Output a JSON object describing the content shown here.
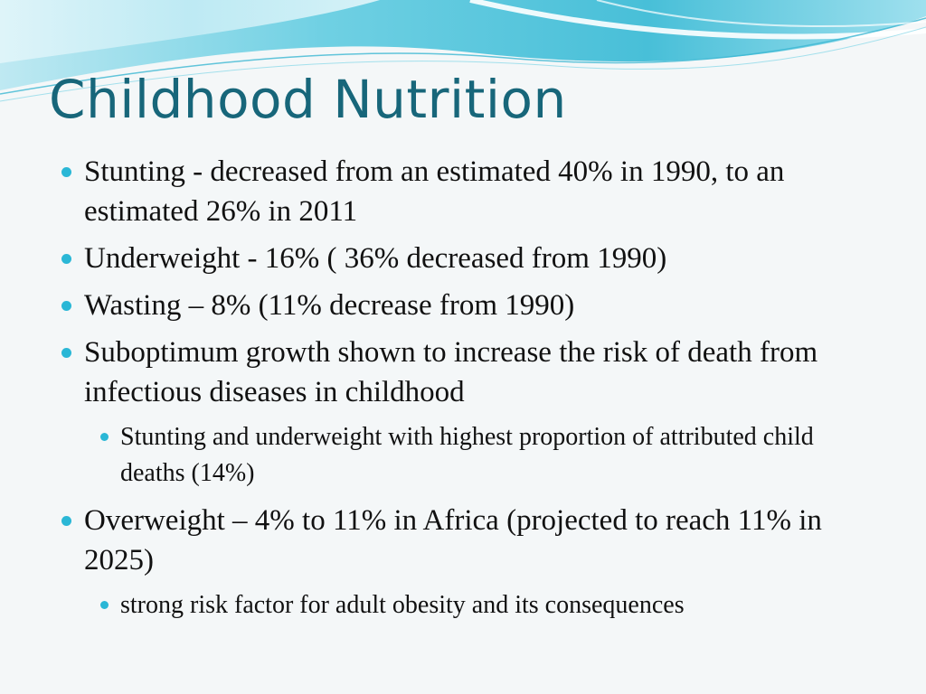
{
  "slide": {
    "title": "Childhood Nutrition",
    "bullets": [
      {
        "text": "Stunting - decreased from an estimated 40% in 1990, to an estimated 26% in 2011"
      },
      {
        "text": "Underweight - 16% ( 36% decreased from 1990)"
      },
      {
        "text": "Wasting – 8% (11% decrease from 1990)"
      },
      {
        "text": "Suboptimum growth shown to increase the risk of death from infectious diseases in childhood"
      },
      {
        "sub": "Stunting and underweight with highest proportion of attributed child deaths (14%)"
      },
      {
        "text": "Overweight – 4% to 11% in Africa (projected to reach 11% in 2025)"
      },
      {
        "sub": "strong risk factor for adult obesity and its consequences"
      }
    ]
  },
  "colors": {
    "title": "#17667a",
    "bullet": "#2ab7d6",
    "wave_primary": "#5ec8dc",
    "background": "#f4f7f8"
  },
  "icons": {
    "bullet": "bullet-dot-icon"
  }
}
